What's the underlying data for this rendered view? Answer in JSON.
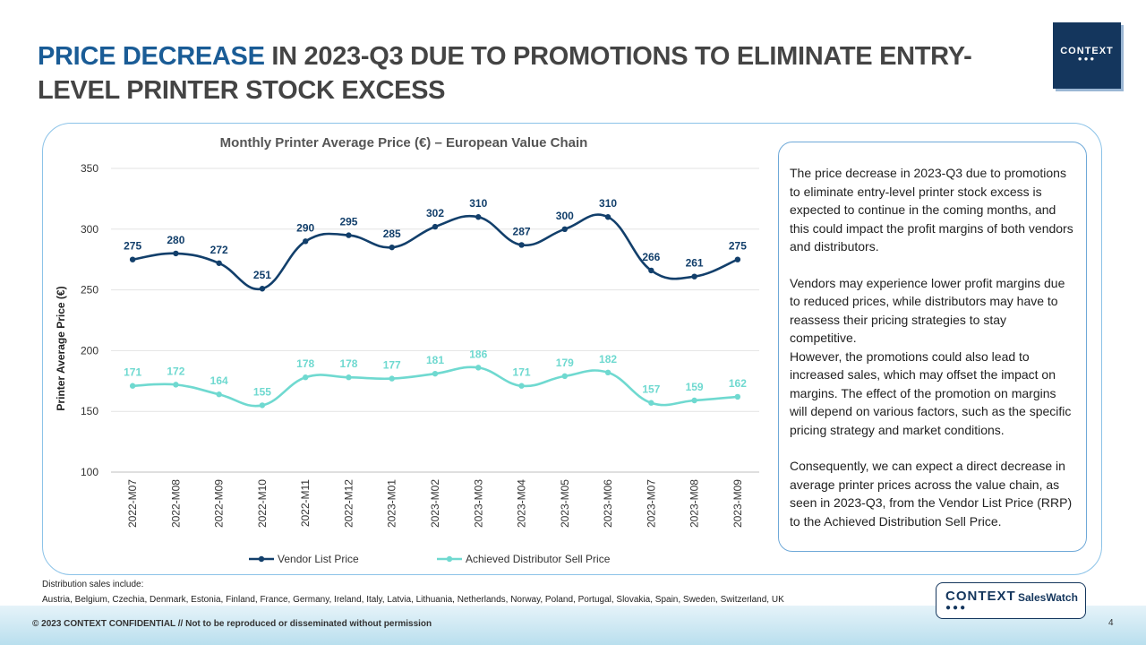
{
  "header": {
    "title_highlight": "PRICE DECREASE",
    "title_rest": " IN 2023-Q3 DUE TO PROMOTIONS TO ELIMINATE ENTRY-LEVEL PRINTER STOCK EXCESS"
  },
  "logo": {
    "text": "CONTEXT",
    "dots": "●●●"
  },
  "chart_data": {
    "type": "line",
    "title": "Monthly Printer Average Price (€) – European Value Chain",
    "xlabel": "",
    "ylabel": "Printer Average Price (€)",
    "ylim": [
      100,
      350
    ],
    "yticks": [
      100,
      150,
      200,
      250,
      300,
      350
    ],
    "grid": true,
    "legend_position": "bottom",
    "categories": [
      "2022-M07",
      "2022-M08",
      "2022-M09",
      "2022-M10",
      "2022-M11",
      "2022-M12",
      "2023-M01",
      "2023-M02",
      "2023-M03",
      "2023-M04",
      "2023-M05",
      "2023-M06",
      "2023-M07",
      "2023-M08",
      "2023-M09"
    ],
    "series": [
      {
        "name": "Vendor List Price",
        "color": "#123f6b",
        "values": [
          275,
          280,
          272,
          251,
          290,
          295,
          285,
          302,
          310,
          287,
          300,
          310,
          266,
          261,
          275
        ]
      },
      {
        "name": "Achieved Distributor Sell Price",
        "color": "#6fd9d0",
        "values": [
          171,
          172,
          164,
          155,
          178,
          178,
          177,
          181,
          186,
          171,
          179,
          182,
          157,
          159,
          162
        ]
      }
    ]
  },
  "commentary": {
    "p1": "The price decrease in 2023-Q3 due to promotions to eliminate entry-level printer stock excess is expected to continue in the coming months, and this could impact the profit margins of both vendors and distributors.",
    "p2": "Vendors may experience lower profit margins due to reduced prices, while distributors may have to reassess their pricing strategies to stay competitive.\nHowever, the promotions could also lead to increased sales, which may offset the impact on margins. The effect of the promotion on margins will depend on various factors, such as the specific pricing strategy and market conditions.",
    "p3": "Consequently, we can expect a direct decrease in average printer prices across the value chain, as seen in 2023-Q3, from the Vendor List Price (RRP) to the Achieved Distribution Sell Price."
  },
  "distribution": {
    "label": "Distribution  sales include:",
    "countries": "Austria,  Belgium,  Czechia,  Denmark,  Estonia,  Finland,  France, Germany,  Ireland, Italy,  Latvia,  Lithuania,  Netherlands,  Norway, Poland,  Portugal,  Slovakia,  Spain,  Sweden,  Switzerland,  UK"
  },
  "footer": {
    "copyright": "© 2023 CONTEXT CONFIDENTIAL // Not to be reproduced or disseminated without permission",
    "page_number": "4",
    "badge_brand": "CONTEXT",
    "badge_dots": "●●●",
    "badge_product": "SalesWatch"
  }
}
